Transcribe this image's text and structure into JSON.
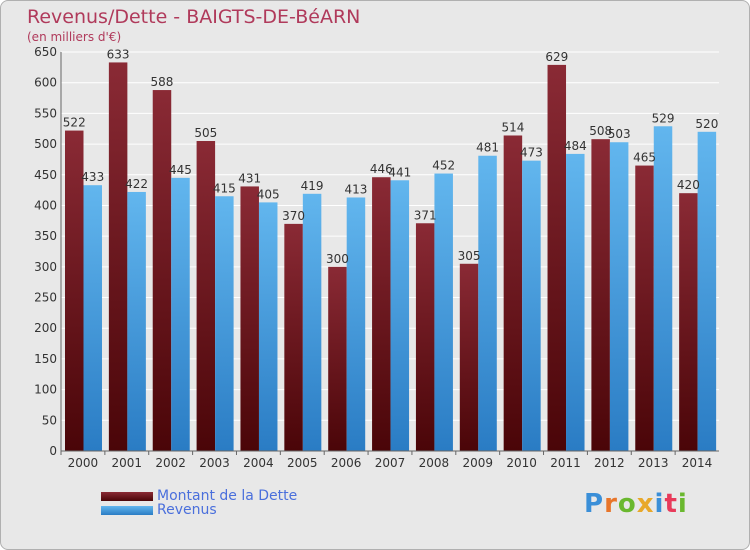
{
  "title": "Revenus/Dette - BAIGTS-DE-BéARN",
  "subtitle": "(en milliers d'€)",
  "brand": "Proxiti",
  "colors": {
    "debt": "#7a1f2a",
    "debt_dark": "#4a0a10",
    "revenue": "#5aaee8",
    "revenue_dark": "#2a80c8",
    "title": "#b03a5b",
    "legend_text": "#4a6fdc"
  },
  "legend": [
    {
      "label": "Montant de la Dette"
    },
    {
      "label": "Revenus"
    }
  ],
  "chart_data": {
    "type": "bar",
    "categories": [
      "2000",
      "2001",
      "2002",
      "2003",
      "2004",
      "2005",
      "2006",
      "2007",
      "2008",
      "2009",
      "2010",
      "2011",
      "2012",
      "2013",
      "2014"
    ],
    "series": [
      {
        "name": "Montant de la Dette",
        "values": [
          522,
          633,
          588,
          505,
          431,
          370,
          300,
          446,
          371,
          305,
          514,
          629,
          508,
          465,
          420
        ]
      },
      {
        "name": "Revenus",
        "values": [
          433,
          422,
          445,
          415,
          405,
          419,
          413,
          441,
          452,
          481,
          473,
          484,
          503,
          529,
          520
        ]
      }
    ],
    "ylim": [
      0,
      650
    ],
    "yticks": [
      0,
      50,
      100,
      150,
      200,
      250,
      300,
      350,
      400,
      450,
      500,
      550,
      600,
      650
    ],
    "grid": true
  }
}
